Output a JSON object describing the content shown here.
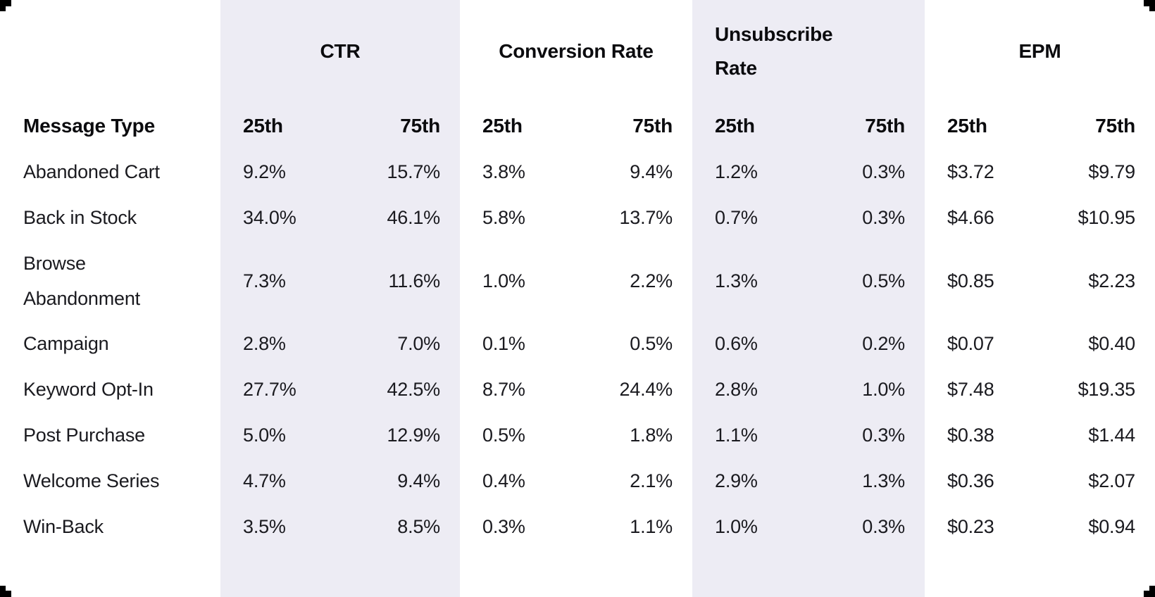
{
  "chart_data": {
    "type": "table",
    "row_header": "Message Type",
    "groups": [
      {
        "label": "CTR",
        "sub": [
          "25th",
          "75th"
        ]
      },
      {
        "label": "Conversion Rate",
        "sub": [
          "25th",
          "75th"
        ]
      },
      {
        "label": "Unsubscribe Rate",
        "sub": [
          "25th",
          "75th"
        ]
      },
      {
        "label": "EPM",
        "sub": [
          "25th",
          "75th"
        ]
      }
    ],
    "rows": [
      {
        "name": "Abandoned Cart",
        "values": [
          "9.2%",
          "15.7%",
          "3.8%",
          "9.4%",
          "1.2%",
          "0.3%",
          "$3.72",
          "$9.79"
        ]
      },
      {
        "name": "Back in Stock",
        "values": [
          "34.0%",
          "46.1%",
          "5.8%",
          "13.7%",
          "0.7%",
          "0.3%",
          "$4.66",
          "$10.95"
        ]
      },
      {
        "name": "Browse Abandonment",
        "values": [
          "7.3%",
          "11.6%",
          "1.0%",
          "2.2%",
          "1.3%",
          "0.5%",
          "$0.85",
          "$2.23"
        ]
      },
      {
        "name": "Campaign",
        "values": [
          "2.8%",
          "7.0%",
          "0.1%",
          "0.5%",
          "0.6%",
          "0.2%",
          "$0.07",
          "$0.40"
        ]
      },
      {
        "name": "Keyword Opt-In",
        "values": [
          "27.7%",
          "42.5%",
          "8.7%",
          "24.4%",
          "2.8%",
          "1.0%",
          "$7.48",
          "$19.35"
        ]
      },
      {
        "name": "Post Purchase",
        "values": [
          "5.0%",
          "12.9%",
          "0.5%",
          "1.8%",
          "1.1%",
          "0.3%",
          "$0.38",
          "$1.44"
        ]
      },
      {
        "name": "Welcome Series",
        "values": [
          "4.7%",
          "9.4%",
          "0.4%",
          "2.1%",
          "2.9%",
          "1.3%",
          "$0.36",
          "$2.07"
        ]
      },
      {
        "name": "Win-Back",
        "values": [
          "3.5%",
          "8.5%",
          "0.3%",
          "1.1%",
          "1.0%",
          "0.3%",
          "$0.23",
          "$0.94"
        ]
      }
    ]
  },
  "colors": {
    "band_background": "#EDECF4",
    "page_background": "#FFFFFF",
    "heading_text": "#0B0B0E",
    "body_text": "#1A1A1F",
    "corner_marks": "#000000"
  }
}
